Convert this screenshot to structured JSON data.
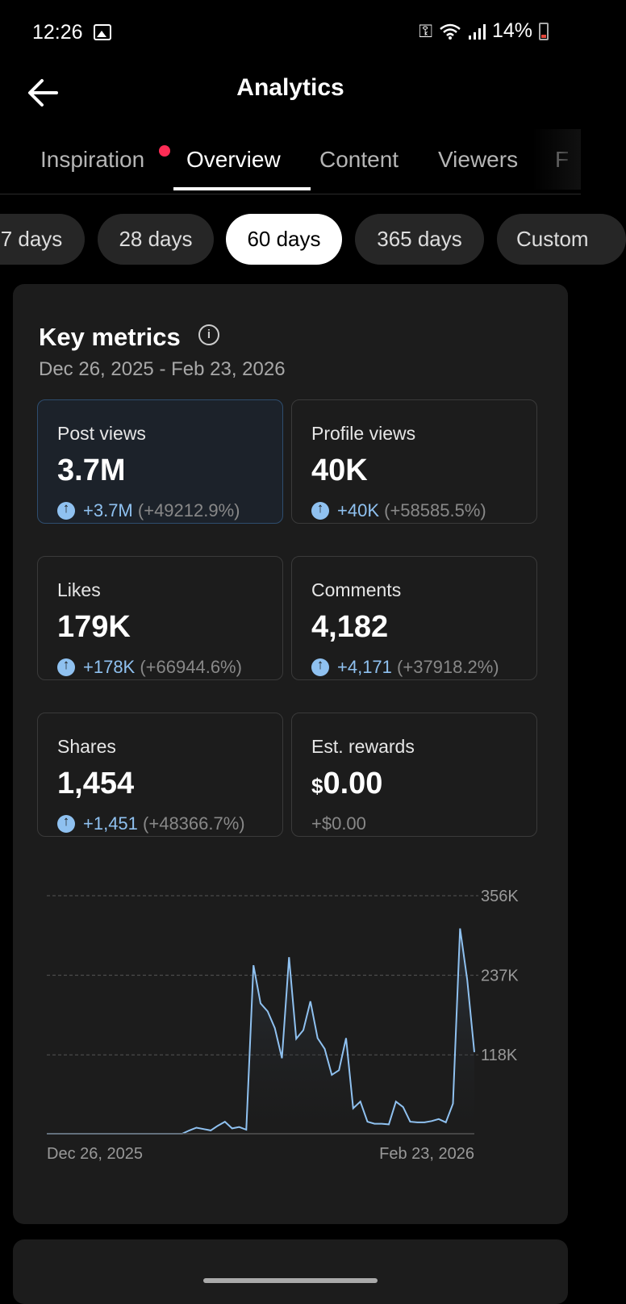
{
  "status_bar": {
    "time": "12:26",
    "battery": "14%"
  },
  "header": {
    "title": "Analytics"
  },
  "tabs": [
    {
      "label": "Inspiration",
      "active": false,
      "badge": true
    },
    {
      "label": "Overview",
      "active": true
    },
    {
      "label": "Content",
      "active": false
    },
    {
      "label": "Viewers",
      "active": false
    },
    {
      "label": "F",
      "active": false
    }
  ],
  "periods": [
    {
      "label": "7 days",
      "selected": false
    },
    {
      "label": "28 days",
      "selected": false
    },
    {
      "label": "60 days",
      "selected": true
    },
    {
      "label": "365 days",
      "selected": false
    },
    {
      "label": "Custom",
      "selected": false
    }
  ],
  "key_metrics": {
    "title": "Key metrics",
    "date_range": "Dec 26, 2025 - Feb 23, 2026",
    "metrics": [
      {
        "label": "Post views",
        "value": "3.7M",
        "change": "+3.7M",
        "pct": "(+49212.9%)"
      },
      {
        "label": "Profile views",
        "value": "40K",
        "change": "+40K",
        "pct": "(+58585.5%)"
      },
      {
        "label": "Likes",
        "value": "179K",
        "change": "+178K",
        "pct": "(+66944.6%)"
      },
      {
        "label": "Comments",
        "value": "4,182",
        "change": "+4,171",
        "pct": "(+37918.2%)"
      },
      {
        "label": "Shares",
        "value": "1,454",
        "change": "+1,451",
        "pct": "(+48366.7%)"
      },
      {
        "label": "Est. rewards",
        "currency": "$",
        "value": "0.00",
        "change": "+$0.00"
      }
    ]
  },
  "chart_data": {
    "type": "area",
    "x_start_label": "Dec 26, 2025",
    "x_end_label": "Feb 23, 2026",
    "y_ticks": [
      "356K",
      "237K",
      "118K"
    ],
    "y_tick_values": [
      356000,
      237000,
      118000
    ],
    "ylim": [
      0,
      356000
    ],
    "grid": true,
    "line_color": "#8fc1f0",
    "values": [
      0,
      0,
      0,
      0,
      0,
      0,
      0,
      0,
      0,
      0,
      0,
      0,
      0,
      0,
      0,
      0,
      0,
      0,
      0,
      0,
      5000,
      9000,
      7000,
      5000,
      12000,
      18000,
      8000,
      10000,
      6000,
      252000,
      195000,
      183000,
      158000,
      113000,
      264000,
      142000,
      155000,
      198000,
      143000,
      127000,
      88000,
      95000,
      143000,
      38000,
      48000,
      18000,
      15000,
      15000,
      14000,
      48000,
      40000,
      18000,
      17000,
      17000,
      19000,
      22000,
      17000,
      45000,
      307000,
      230000,
      122000
    ]
  }
}
